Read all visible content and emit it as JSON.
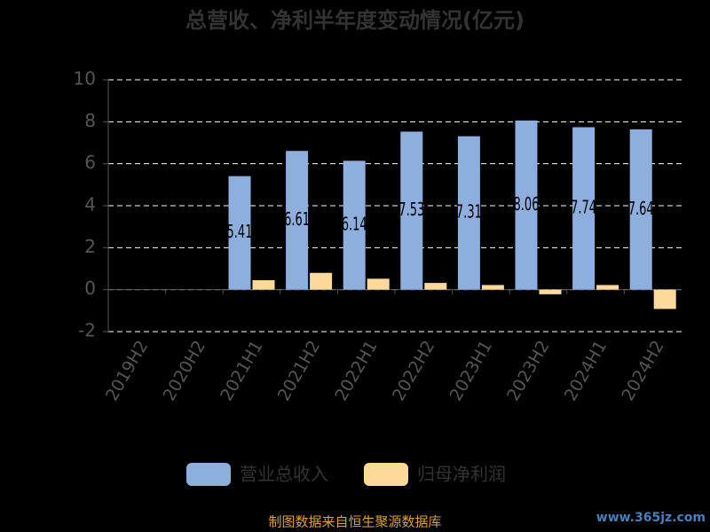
{
  "chart_data": {
    "type": "bar",
    "title": "总营收、净利半年度变动情况(亿元)",
    "categories": [
      "2019H2",
      "2020H2",
      "2021H1",
      "2021H2",
      "2022H1",
      "2022H2",
      "2023H1",
      "2023H2",
      "2024H1",
      "2024H2"
    ],
    "series": [
      {
        "name": "营业总收入",
        "color": "#8eaedd",
        "values": [
          null,
          null,
          5.41,
          6.61,
          6.14,
          7.53,
          7.31,
          8.06,
          7.74,
          7.64
        ]
      },
      {
        "name": "归母净利润",
        "color": "#fdd99a",
        "values": [
          null,
          null,
          0.45,
          0.8,
          0.52,
          0.32,
          0.22,
          -0.22,
          0.22,
          -0.92
        ]
      }
    ],
    "ylim": [
      -2,
      10
    ],
    "yticks": [
      -2,
      0,
      2,
      4,
      6,
      8,
      10
    ],
    "grid": true,
    "source": "制图数据来自恒生聚源数据库",
    "watermark": "www.365jz.com"
  }
}
